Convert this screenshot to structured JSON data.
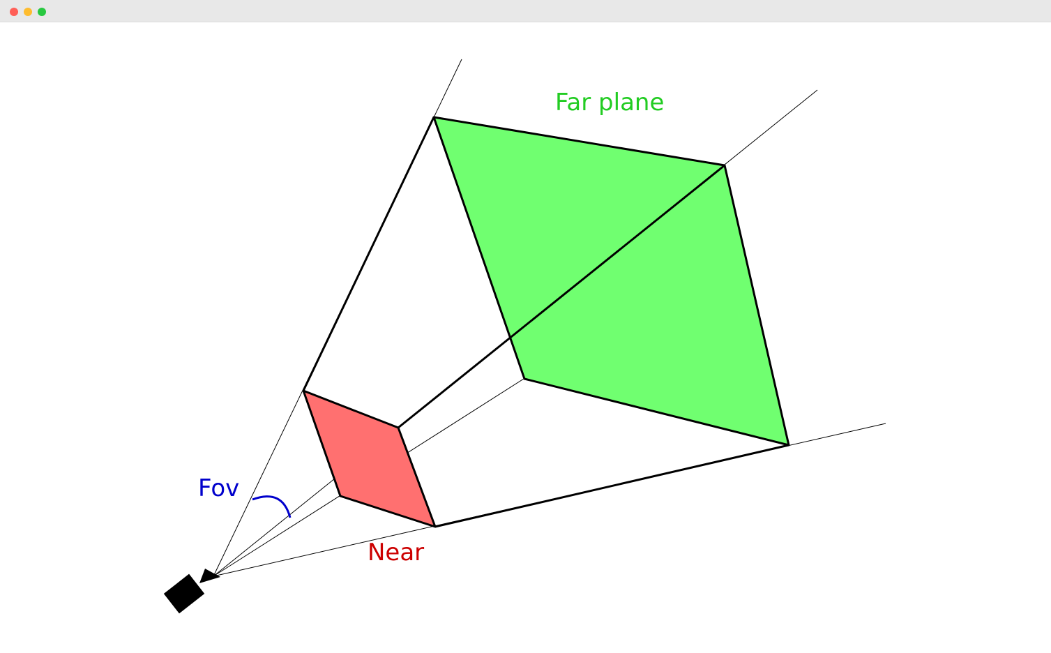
{
  "window": {
    "controls": [
      "close",
      "minimize",
      "maximize"
    ]
  },
  "diagram": {
    "labels": {
      "far": "Far plane",
      "near": "Near",
      "fov": "Fov"
    },
    "colors": {
      "far_fill": "#70ff70",
      "near_fill": "#ff7070",
      "far_label": "#22cc22",
      "near_label": "#cc0000",
      "fov_label": "#0000cc",
      "stroke": "#000000"
    },
    "icons": [
      "camera-icon"
    ]
  }
}
